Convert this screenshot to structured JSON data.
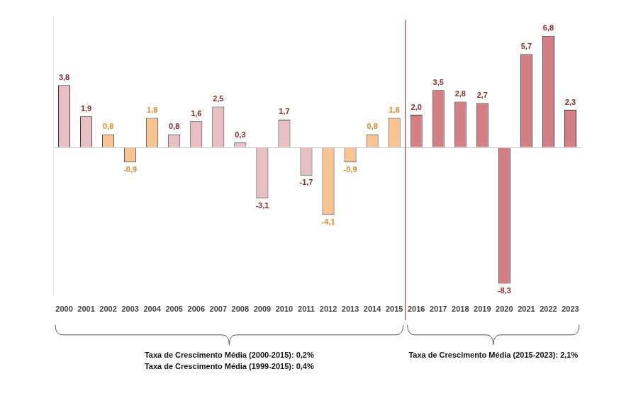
{
  "chart_data": {
    "type": "bar",
    "categories": [
      "2000",
      "2001",
      "2002",
      "2003",
      "2004",
      "2005",
      "2006",
      "2007",
      "2008",
      "2009",
      "2010",
      "2011",
      "2012",
      "2013",
      "2014",
      "2015",
      "2016",
      "2017",
      "2018",
      "2019",
      "2020",
      "2021",
      "2022",
      "2023"
    ],
    "values": [
      3.8,
      1.9,
      0.8,
      -0.9,
      1.8,
      0.8,
      1.6,
      2.5,
      0.3,
      -3.1,
      1.7,
      -1.7,
      -4.1,
      -0.9,
      0.8,
      1.8,
      2.0,
      3.5,
      2.8,
      2.7,
      -8.3,
      5.7,
      6.8,
      2.3
    ],
    "value_labels": [
      "3,8",
      "1,9",
      "0,8",
      "-0,9",
      "1,8",
      "0,8",
      "1,6",
      "2,5",
      "0,3",
      "-3,1",
      "1,7",
      "-1,7",
      "-4,1",
      "-0,9",
      "0,8",
      "1,8",
      "2,0",
      "3,5",
      "2,8",
      "2,7",
      "-8,3",
      "5,7",
      "6,8",
      "2,3"
    ],
    "colors": [
      "#e8bfc3",
      "#e8bfc3",
      "#f8c491",
      "#f8c491",
      "#f8c491",
      "#e8bfc3",
      "#e8bfc3",
      "#e8bfc3",
      "#e8bfc3",
      "#e8bfc3",
      "#e8bfc3",
      "#e8bfc3",
      "#f8c491",
      "#f8c491",
      "#f8c491",
      "#f8c491",
      "#d47f84",
      "#d47f84",
      "#d47f84",
      "#d47f84",
      "#d47f84",
      "#d47f84",
      "#d47f84",
      "#d47f84"
    ],
    "ylim": [
      -9,
      8
    ],
    "yticks": [
      0
    ],
    "grid": true,
    "data_labels": true,
    "tick_labels": "x",
    "annotations": [
      {
        "from": "2000",
        "to": "2015",
        "texts": [
          "Taxa de Crescimento Média (2000-2015): 0,2%",
          "Taxa de Crescimento Média (1999-2015): 0,4%"
        ]
      },
      {
        "from": "2016",
        "to": "2023",
        "texts": [
          "Taxa de Crescimento Média (2015-2023): 2,1%"
        ]
      }
    ]
  }
}
